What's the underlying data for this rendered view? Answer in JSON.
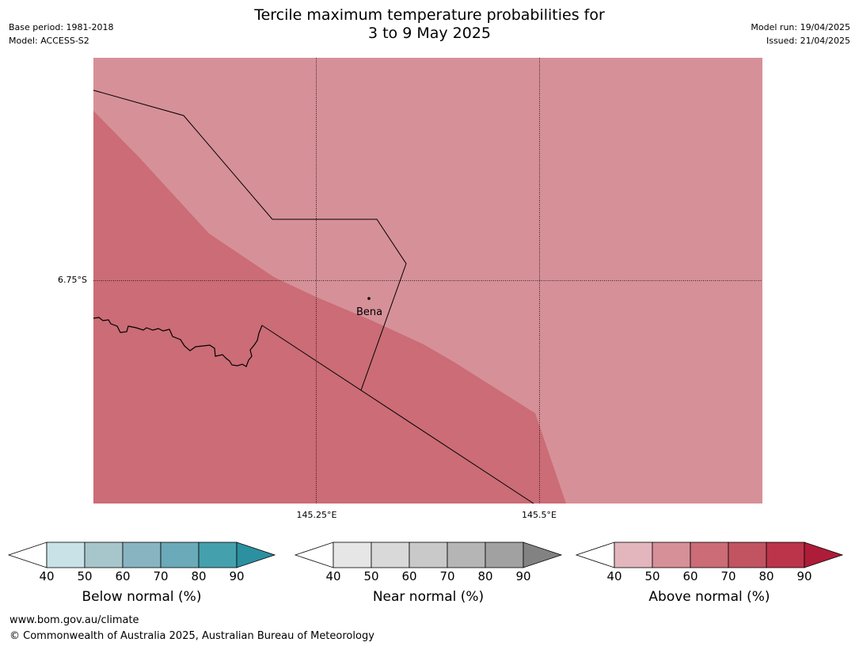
{
  "title": {
    "line1": "Tercile maximum temperature probabilities for",
    "line2": "3 to 9 May 2025"
  },
  "meta_left": {
    "base_period": "Base period: 1981-2018",
    "model": "Model: ACCESS-S2"
  },
  "meta_right": {
    "model_run": "Model run: 19/04/2025",
    "issued": "Issued: 21/04/2025"
  },
  "map": {
    "longitude_labels": [
      "145.25°E",
      "145.5°E"
    ],
    "latitude_labels": [
      "6.75°S"
    ],
    "towns": [
      {
        "name": "Bena"
      }
    ],
    "colors": {
      "above_50_60": "#d69098",
      "above_60_70": "#cb6c76",
      "boundary": "#000000"
    }
  },
  "colorbars": [
    {
      "name": "below",
      "title": "Below normal (%)",
      "ticks": [
        "40",
        "50",
        "60",
        "70",
        "80",
        "90"
      ],
      "colors": [
        "#c9e2e7",
        "#a7c6cc",
        "#88b4c1",
        "#6aaab9",
        "#45a0ae",
        "#2c90a0"
      ]
    },
    {
      "name": "near",
      "title": "Near normal (%)",
      "ticks": [
        "40",
        "50",
        "60",
        "70",
        "80",
        "90"
      ],
      "colors": [
        "#e6e6e6",
        "#d9d9d9",
        "#c9c9c9",
        "#b5b5b5",
        "#a1a1a1",
        "#828282"
      ]
    },
    {
      "name": "above",
      "title": "Above normal (%)",
      "ticks": [
        "40",
        "50",
        "60",
        "70",
        "80",
        "90"
      ],
      "colors": [
        "#e2b6bc",
        "#d69098",
        "#cb6c76",
        "#c25461",
        "#bb344a",
        "#ad1c38"
      ]
    }
  ],
  "footer": {
    "website": "www.bom.gov.au/climate",
    "copyright": "© Commonwealth of Australia 2025, Australian Bureau of Meteorology"
  }
}
